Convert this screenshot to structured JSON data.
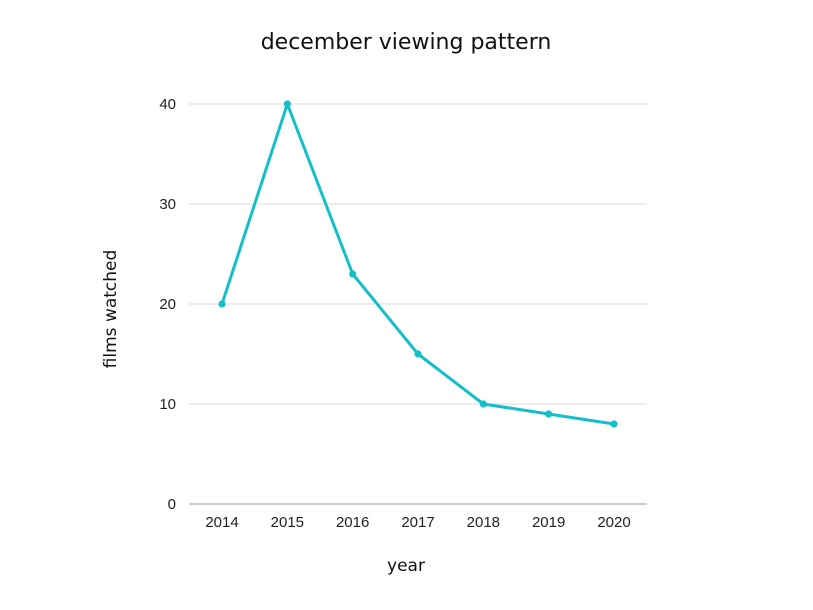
{
  "chart_data": {
    "type": "line",
    "title": "december viewing pattern",
    "xlabel": "year",
    "ylabel": "films watched",
    "categories": [
      "2014",
      "2015",
      "2016",
      "2017",
      "2018",
      "2019",
      "2020"
    ],
    "series": [
      {
        "name": "films watched",
        "values": [
          20,
          40,
          23,
          15,
          10,
          9,
          8
        ],
        "color": "#14bfc9"
      }
    ],
    "ylim": [
      0,
      40
    ],
    "yticks": [
      "0",
      "10",
      "20",
      "30",
      "40"
    ],
    "grid": true,
    "legend": "none"
  }
}
